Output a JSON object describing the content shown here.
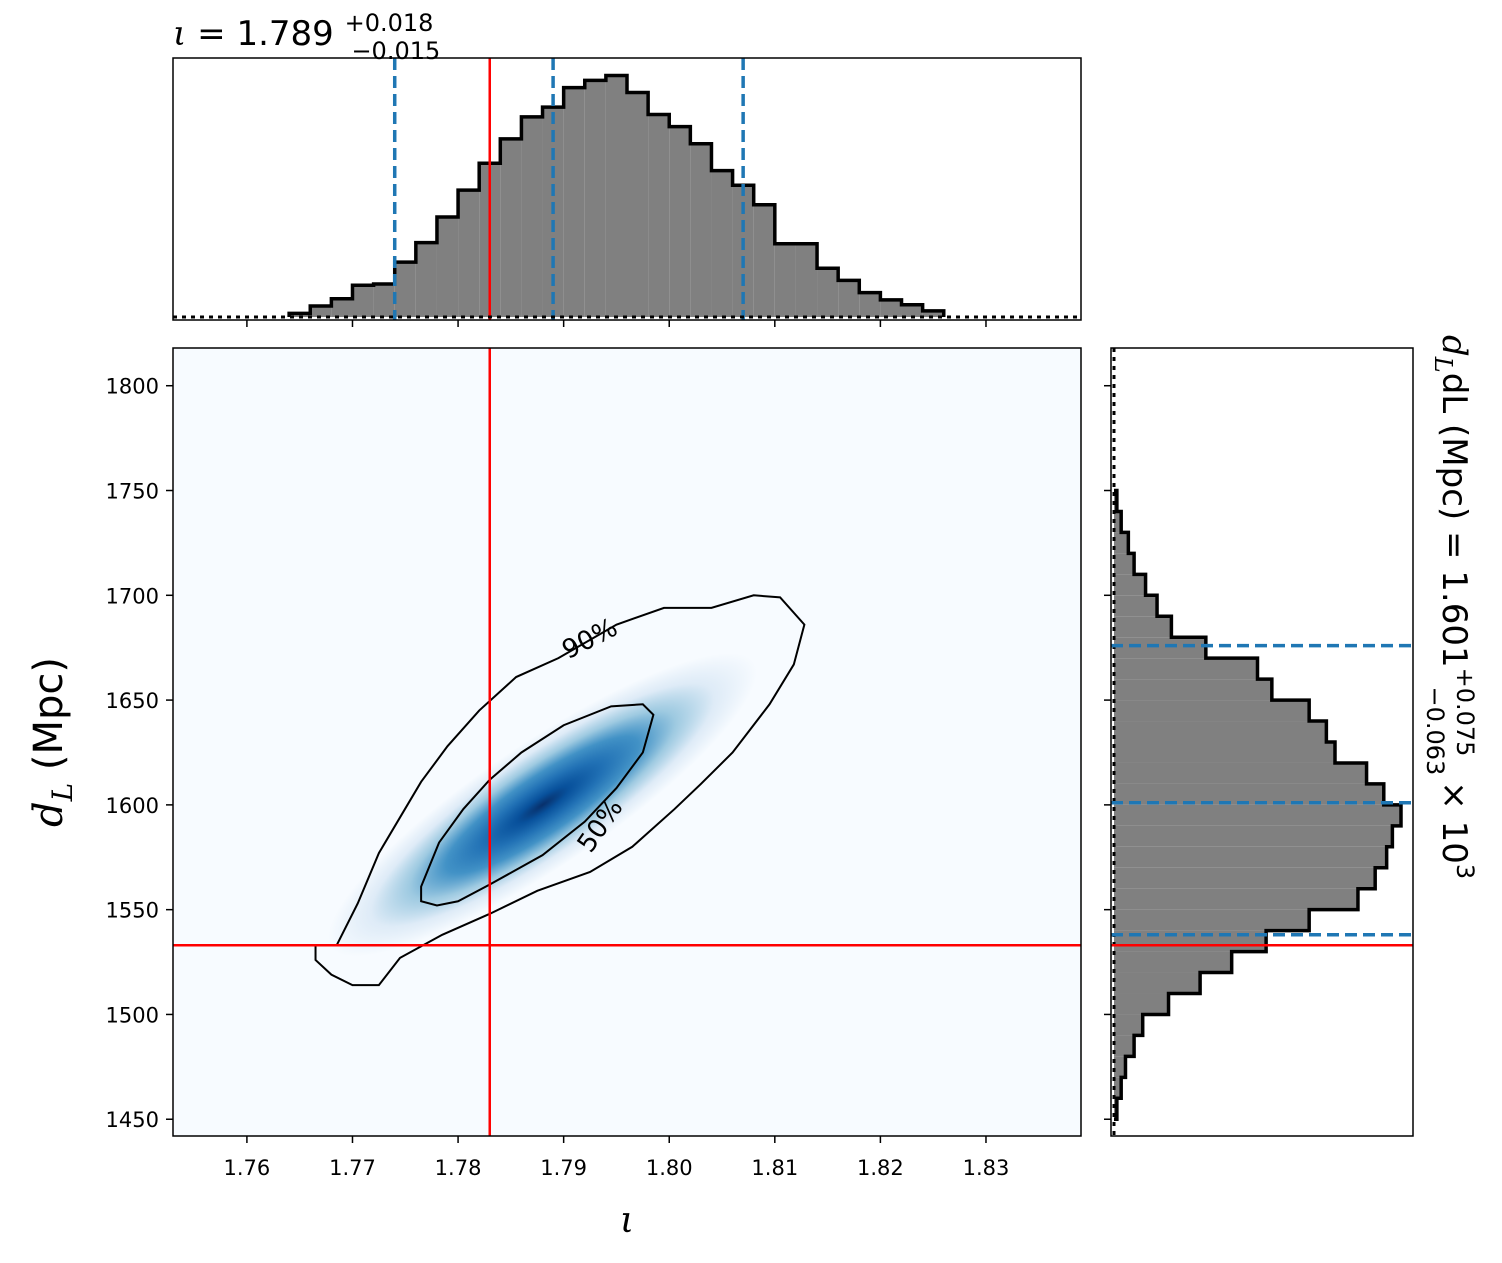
{
  "chart_data": [
    {
      "type": "histogram",
      "panel": "top-marginal",
      "variable": "ι",
      "title_text": {
        "main": "ι = 1.789",
        "sup": "+0.018",
        "sub": "−0.015"
      },
      "bin_width": 0.002,
      "bins_x_start": [
        1.764,
        1.766,
        1.768,
        1.77,
        1.772,
        1.774,
        1.776,
        1.778,
        1.78,
        1.782,
        1.784,
        1.786,
        1.788,
        1.79,
        1.792,
        1.794,
        1.796,
        1.798,
        1.8,
        1.802,
        1.804,
        1.806,
        1.808,
        1.81,
        1.812,
        1.814,
        1.816,
        1.818,
        1.82,
        1.822,
        1.824
      ],
      "density": [
        0.015,
        0.045,
        0.075,
        0.13,
        0.135,
        0.225,
        0.305,
        0.41,
        0.52,
        0.63,
        0.73,
        0.82,
        0.86,
        0.94,
        0.97,
        0.99,
        0.92,
        0.83,
        0.78,
        0.71,
        0.6,
        0.54,
        0.46,
        0.3,
        0.3,
        0.2,
        0.15,
        0.1,
        0.07,
        0.05,
        0.025
      ],
      "quantile_lines": [
        1.774,
        1.789,
        1.807
      ],
      "injected_value": 1.783,
      "xlim": [
        1.753,
        1.839
      ],
      "colors": {
        "fill": "#808080",
        "edge": "#000000",
        "quantile": "#1f77b4",
        "truth": "#ff0000"
      }
    },
    {
      "type": "heatmap",
      "panel": "joint",
      "xlabel": "ι",
      "ylabel": "dL (Mpc)",
      "xlim": [
        1.753,
        1.839
      ],
      "ylim": [
        1442,
        1818
      ],
      "xticks": [
        "1.76",
        "1.77",
        "1.78",
        "1.79",
        "1.80",
        "1.81",
        "1.82",
        "1.83"
      ],
      "xtick_values": [
        1.76,
        1.77,
        1.78,
        1.79,
        1.8,
        1.81,
        1.82,
        1.83
      ],
      "yticks": [
        "1450",
        "1500",
        "1550",
        "1600",
        "1650",
        "1700",
        "1750",
        "1800"
      ],
      "ytick_values": [
        1450,
        1500,
        1550,
        1600,
        1650,
        1700,
        1750,
        1800
      ],
      "peak": {
        "x": 1.788,
        "y": 1600
      },
      "contours": [
        {
          "label": "90%",
          "label_at": {
            "x": 1.7925,
            "y": 1679
          },
          "label_angle_deg": -27,
          "points": [
            [
              1.7685,
              1.533
            ],
            [
              1.7705,
              1.553
            ],
            [
              1.7725,
              1.577
            ],
            [
              1.7745,
              1.594
            ],
            [
              1.7765,
              1.611
            ],
            [
              1.779,
              1.628
            ],
            [
              1.782,
              1.645
            ],
            [
              1.7855,
              1.661
            ],
            [
              1.7895,
              1.67
            ],
            [
              1.795,
              1.686
            ],
            [
              1.7995,
              1.694
            ],
            [
              1.804,
              1.694
            ],
            [
              1.808,
              1.7
            ],
            [
              1.8105,
              1.699
            ],
            [
              1.8128,
              1.686
            ],
            [
              1.8118,
              1.667
            ],
            [
              1.8095,
              1.648
            ],
            [
              1.806,
              1.625
            ],
            [
              1.803,
              1.61
            ],
            [
              1.8005,
              1.598
            ],
            [
              1.7965,
              1.58
            ],
            [
              1.7925,
              1.568
            ],
            [
              1.7875,
              1.559
            ],
            [
              1.783,
              1.548
            ],
            [
              1.7785,
              1.538
            ],
            [
              1.7745,
              1.527
            ],
            [
              1.7725,
              1.514
            ],
            [
              1.77,
              1.514
            ],
            [
              1.768,
              1.519
            ],
            [
              1.7665,
              1.526
            ],
            [
              1.7665,
              1.533
            ]
          ]
        },
        {
          "label": "50%",
          "label_at": {
            "x": 1.7935,
            "y": 1590
          },
          "label_angle_deg": -55,
          "points": [
            [
              1.7765,
              1.561
            ],
            [
              1.7782,
              1.582
            ],
            [
              1.7805,
              1.598
            ],
            [
              1.783,
              1.612
            ],
            [
              1.786,
              1.625
            ],
            [
              1.79,
              1.638
            ],
            [
              1.7945,
              1.647
            ],
            [
              1.7975,
              1.648
            ],
            [
              1.7985,
              1.643
            ],
            [
              1.7975,
              1.625
            ],
            [
              1.795,
              1.608
            ],
            [
              1.792,
              1.592
            ],
            [
              1.788,
              1.576
            ],
            [
              1.783,
              1.562
            ],
            [
              1.78,
              1.554
            ],
            [
              1.778,
              1.552
            ],
            [
              1.7765,
              1.554
            ],
            [
              1.7765,
              1.561
            ]
          ]
        }
      ],
      "truth_lines": {
        "x": 1.783,
        "y": 1533
      },
      "colormap": "Blues",
      "colors": {
        "truth": "#ff0000",
        "contour": "#000000"
      }
    },
    {
      "type": "histogram",
      "panel": "right-marginal",
      "orientation": "horizontal",
      "variable": "dL (Mpc)",
      "title_text": {
        "main": "dL (Mpc) = 1.601",
        "sup": "+0.075",
        "sub": "−0.063",
        "tail": "× 10",
        "exp": "3"
      },
      "bin_width": 10,
      "bins_y_start": [
        1450,
        1460,
        1470,
        1480,
        1490,
        1500,
        1510,
        1520,
        1530,
        1540,
        1550,
        1560,
        1570,
        1580,
        1590,
        1600,
        1610,
        1620,
        1630,
        1640,
        1650,
        1660,
        1670,
        1680,
        1690,
        1700,
        1710,
        1720,
        1730,
        1740
      ],
      "density": [
        0.01,
        0.025,
        0.04,
        0.07,
        0.1,
        0.19,
        0.3,
        0.41,
        0.53,
        0.68,
        0.85,
        0.91,
        0.95,
        0.97,
        1.0,
        0.94,
        0.88,
        0.77,
        0.74,
        0.68,
        0.55,
        0.5,
        0.32,
        0.2,
        0.15,
        0.11,
        0.07,
        0.05,
        0.025,
        0.01
      ],
      "quantile_lines": [
        1538,
        1601,
        1676
      ],
      "injected_value": 1533,
      "ylim": [
        1442,
        1818
      ],
      "colors": {
        "fill": "#808080",
        "edge": "#000000",
        "quantile": "#1f77b4",
        "truth": "#ff0000"
      }
    }
  ]
}
